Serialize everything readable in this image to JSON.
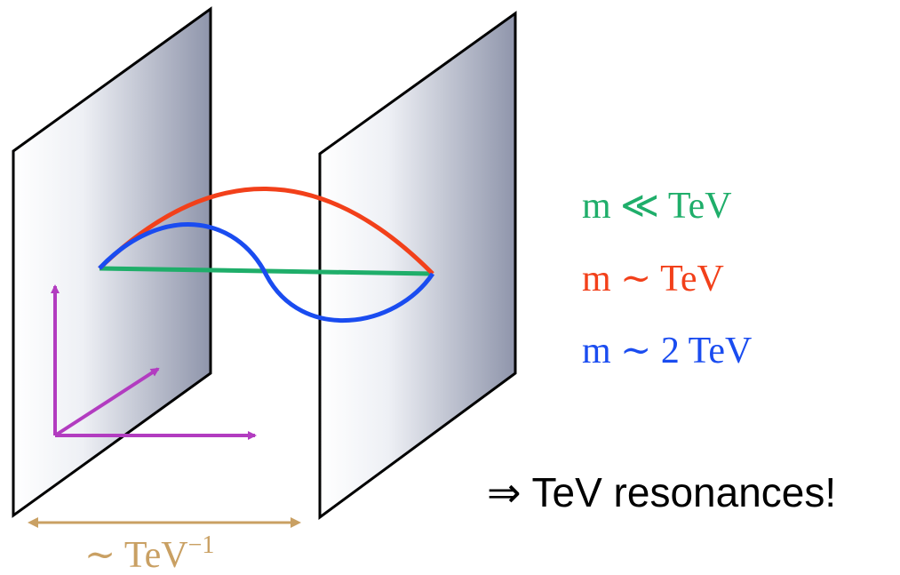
{
  "legend": [
    {
      "text": "m ≪ TeV",
      "color": "#1fae6a"
    },
    {
      "text": "m ∼ TeV",
      "color": "#f2401a"
    },
    {
      "text": "m ∼ 2 TeV",
      "color": "#1a4cf0"
    }
  ],
  "conclusion": "⇒ TeV resonances!",
  "scale": {
    "text": "∼ TeV",
    "exponent": "−1",
    "color": "#c9a063"
  }
}
